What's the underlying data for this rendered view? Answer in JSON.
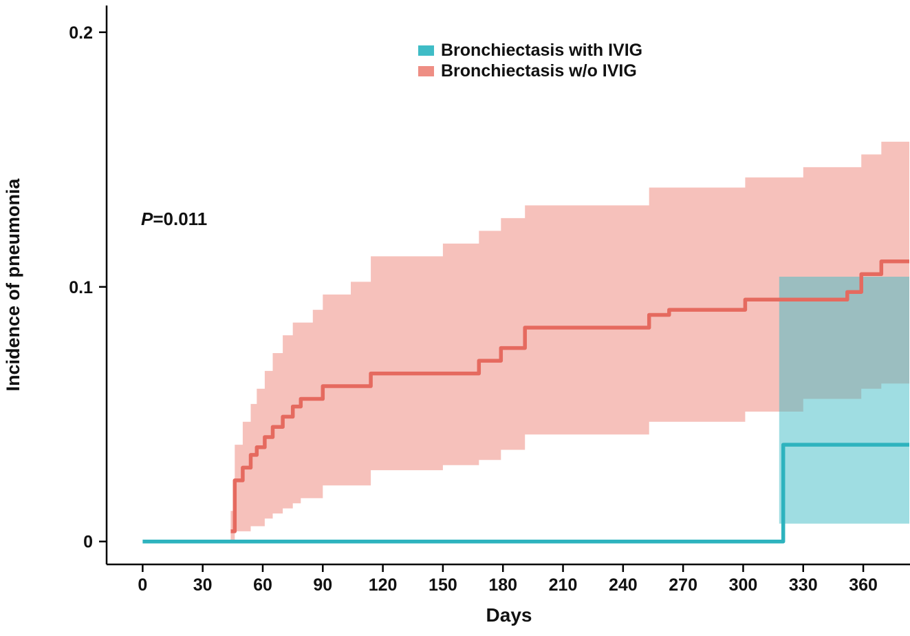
{
  "chart_data": {
    "type": "line",
    "subtype": "cumulative-incidence-step-curves-with-confidence-bands",
    "title": "",
    "xlabel": "Days",
    "ylabel": "Incidence of pneumonia",
    "xlim": [
      -18,
      383
    ],
    "ylim": [
      -0.009,
      0.2105
    ],
    "x_ticks": [
      0,
      30,
      60,
      90,
      120,
      150,
      180,
      210,
      240,
      270,
      300,
      330,
      360
    ],
    "x_tick_labels": [
      "0",
      "30",
      "60",
      "90",
      "120",
      "150",
      "180",
      "210",
      "240",
      "270",
      "300",
      "330",
      "360"
    ],
    "y_ticks": [
      0,
      0.1,
      0.2
    ],
    "y_tick_labels": [
      "0",
      "0.1",
      "0.2"
    ],
    "grid": false,
    "legend_position": "top-center",
    "axis_color": "#000000",
    "end_day": 383,
    "annotation": {
      "p_label": "P",
      "p_value": "=0.011"
    },
    "legend": [
      {
        "label": "Bronchiectasis with IVIG",
        "color": "#3fbcc6"
      },
      {
        "label": "Bronchiectasis w/o IVIG",
        "color": "#ee8e84"
      }
    ],
    "series": [
      {
        "name": "Bronchiectasis with IVIG",
        "line_color": "#2eb3be",
        "band_color": "#3fbcc6",
        "band_opacity": 0.5,
        "steps": [
          [
            0,
            0
          ],
          [
            320,
            0.038
          ]
        ],
        "band_upper": [
          [
            318,
            0.104
          ]
        ],
        "band_lower": [
          [
            318,
            0.007
          ]
        ]
      },
      {
        "name": "Bronchiectasis w/o IVIG",
        "line_color": "#e56a5f",
        "band_color": "#ee8e84",
        "band_opacity": 0.55,
        "steps": [
          [
            44,
            0.004
          ],
          [
            46,
            0.024
          ],
          [
            50,
            0.029
          ],
          [
            54,
            0.034
          ],
          [
            57,
            0.037
          ],
          [
            61,
            0.041
          ],
          [
            65,
            0.045
          ],
          [
            70,
            0.049
          ],
          [
            75,
            0.053
          ],
          [
            79,
            0.056
          ],
          [
            90,
            0.061
          ],
          [
            114,
            0.066
          ],
          [
            168,
            0.071
          ],
          [
            179,
            0.076
          ],
          [
            191,
            0.084
          ],
          [
            253,
            0.089
          ],
          [
            263,
            0.091
          ],
          [
            301,
            0.095
          ],
          [
            352,
            0.098
          ],
          [
            359,
            0.105
          ],
          [
            369,
            0.11
          ]
        ],
        "band_upper": [
          [
            44,
            0.012
          ],
          [
            46,
            0.038
          ],
          [
            50,
            0.047
          ],
          [
            54,
            0.054
          ],
          [
            57,
            0.06
          ],
          [
            61,
            0.067
          ],
          [
            65,
            0.074
          ],
          [
            70,
            0.081
          ],
          [
            75,
            0.086
          ],
          [
            85,
            0.091
          ],
          [
            90,
            0.097
          ],
          [
            104,
            0.102
          ],
          [
            114,
            0.112
          ],
          [
            150,
            0.117
          ],
          [
            168,
            0.122
          ],
          [
            179,
            0.127
          ],
          [
            191,
            0.132
          ],
          [
            253,
            0.139
          ],
          [
            301,
            0.143
          ],
          [
            330,
            0.147
          ],
          [
            359,
            0.152
          ],
          [
            369,
            0.157
          ]
        ],
        "band_lower": [
          [
            44,
            0.0
          ],
          [
            46,
            0.004
          ],
          [
            54,
            0.006
          ],
          [
            61,
            0.009
          ],
          [
            65,
            0.011
          ],
          [
            70,
            0.013
          ],
          [
            75,
            0.015
          ],
          [
            79,
            0.017
          ],
          [
            90,
            0.022
          ],
          [
            114,
            0.028
          ],
          [
            150,
            0.03
          ],
          [
            168,
            0.032
          ],
          [
            179,
            0.036
          ],
          [
            191,
            0.042
          ],
          [
            253,
            0.047
          ],
          [
            301,
            0.051
          ],
          [
            330,
            0.056
          ],
          [
            359,
            0.06
          ],
          [
            369,
            0.062
          ]
        ]
      }
    ]
  }
}
